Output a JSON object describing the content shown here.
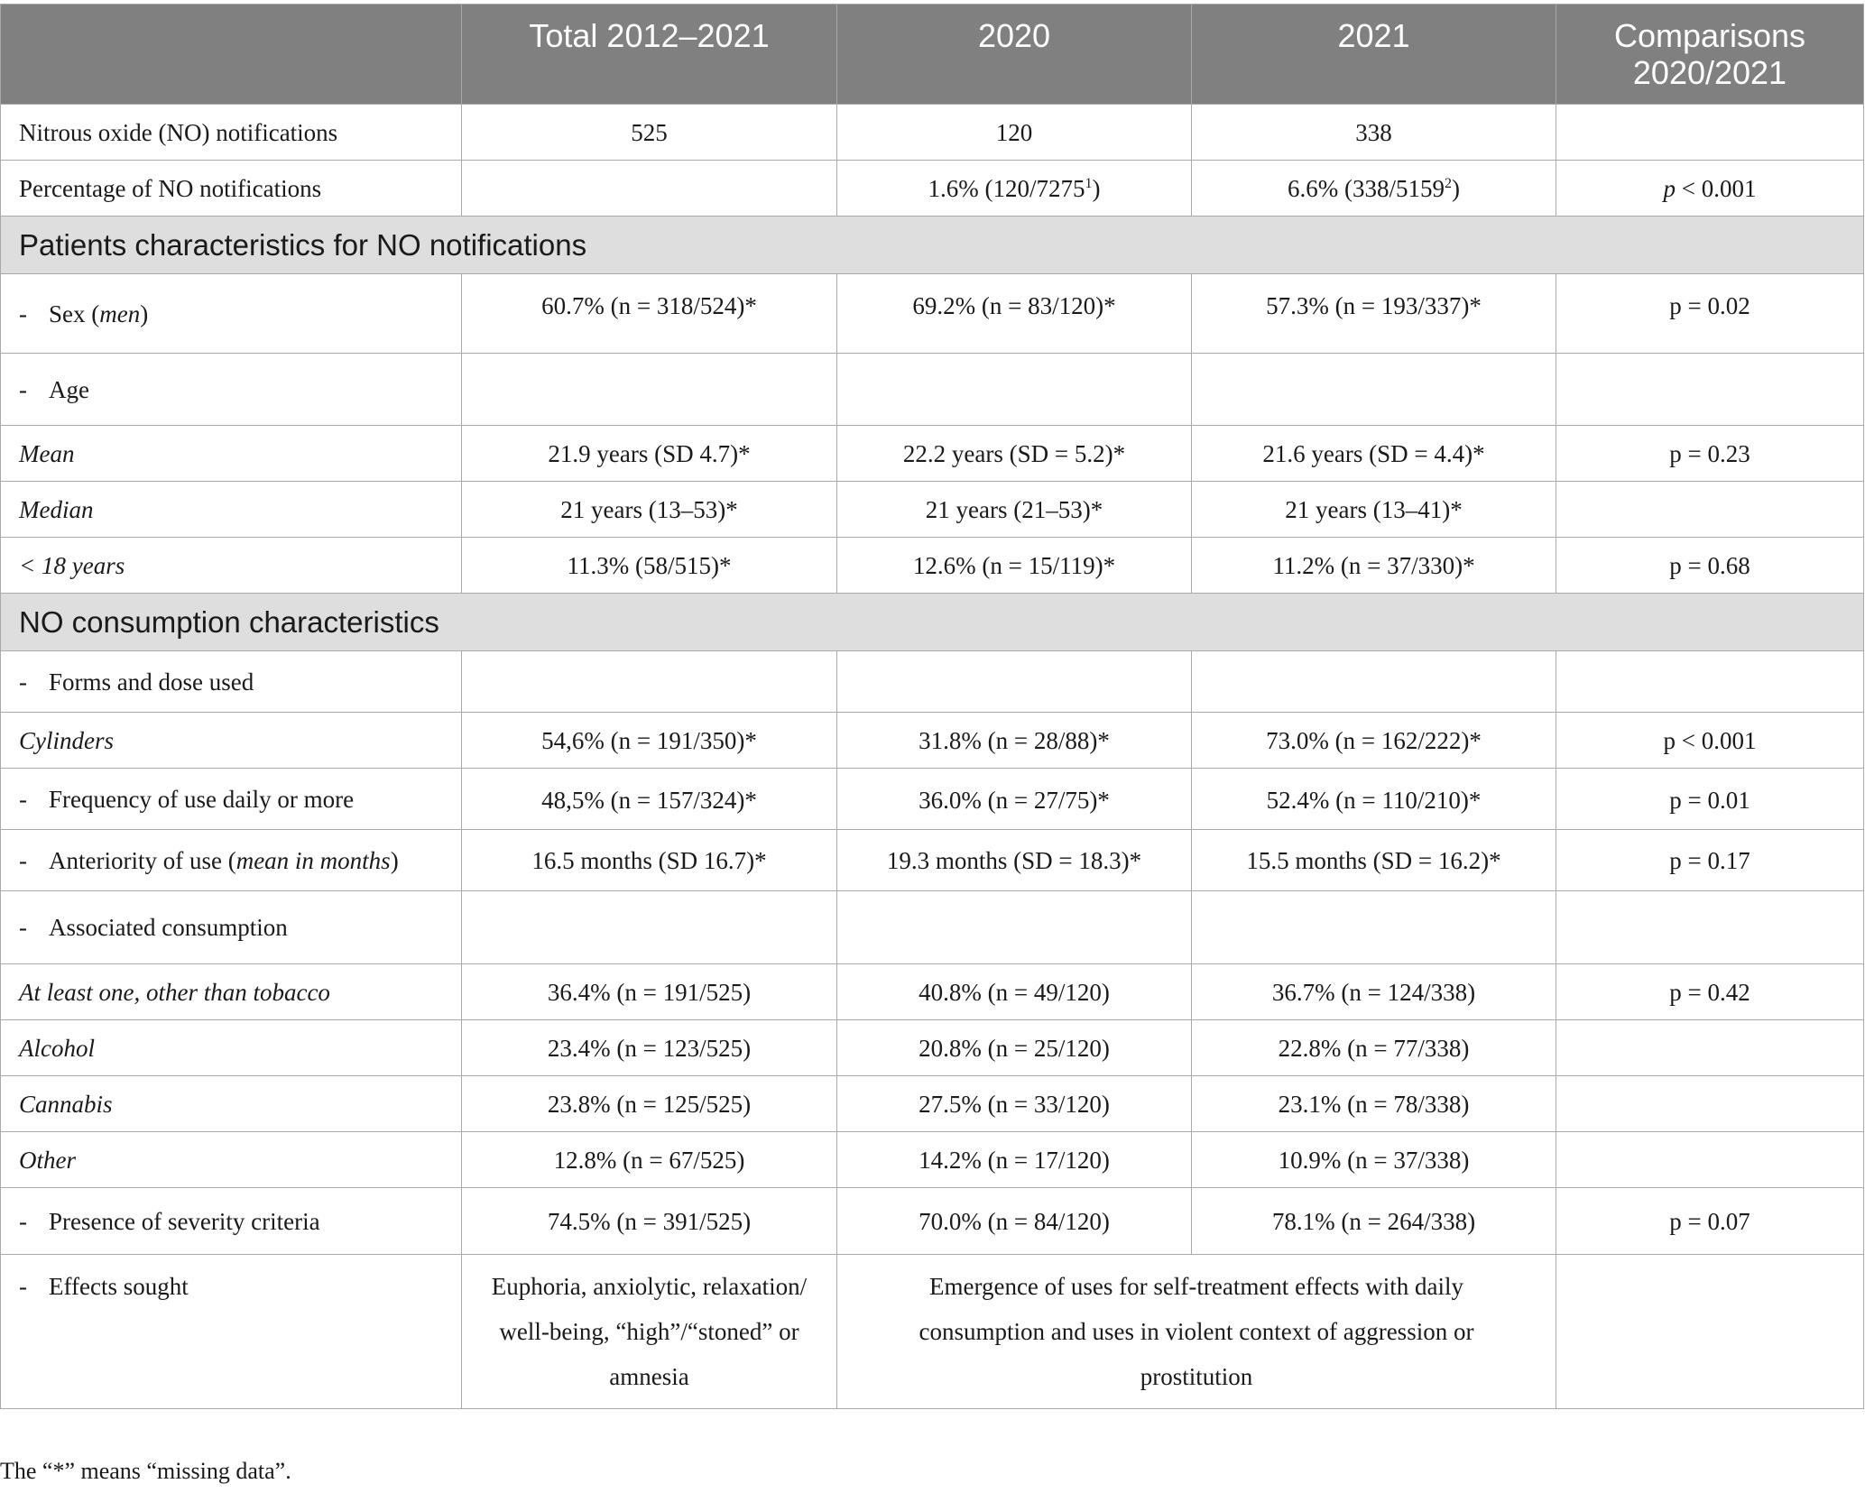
{
  "header": {
    "col0": "",
    "col1": "Total 2012–2021",
    "col2": "2020",
    "col3": "2021",
    "col4_line1": "Comparisons",
    "col4_line2": "2020/2021"
  },
  "rows": {
    "r1": {
      "label": "Nitrous oxide (NO) notifications",
      "c1": "525",
      "c2": "120",
      "c3": "338",
      "c4": ""
    },
    "r2": {
      "label": "Percentage of NO notifications",
      "c1": "",
      "c2_text": "1.6% (120/7275",
      "c2_sup": "1",
      "c2_end": ")",
      "c3_text": "6.6% (338/5159",
      "c3_sup": "2",
      "c3_end": ")",
      "c4_p": "p",
      "c4_rest": " < 0.001"
    },
    "section1": "Patients characteristics for NO notifications",
    "r3": {
      "dash": "-",
      "label_pre": "Sex (",
      "label_it": "men",
      "label_post": ")",
      "c1": "60.7% (n = 318/524)*",
      "c2": "69.2% (n = 83/120)*",
      "c3": "57.3% (n = 193/337)*",
      "c4": "p = 0.02"
    },
    "r4": {
      "dash": "-",
      "label": "Age"
    },
    "r5": {
      "label": "Mean",
      "c1": "21.9 years (SD 4.7)*",
      "c2": "22.2 years (SD = 5.2)*",
      "c3": "21.6 years (SD = 4.4)*",
      "c4": "p = 0.23"
    },
    "r6": {
      "label": "Median",
      "c1": "21 years (13–53)*",
      "c2": "21 years (21–53)*",
      "c3": "21 years (13–41)*",
      "c4": ""
    },
    "r7": {
      "label": "< 18 years",
      "c1": "11.3% (58/515)*",
      "c2": "12.6% (n = 15/119)*",
      "c3": "11.2% (n = 37/330)*",
      "c4": "p = 0.68"
    },
    "section2": "NO consumption characteristics",
    "r8": {
      "dash": "-",
      "label": "Forms and dose used"
    },
    "r9": {
      "label": "Cylinders",
      "c1": "54,6% (n = 191/350)*",
      "c2": "31.8% (n = 28/88)*",
      "c3": "73.0% (n = 162/222)*",
      "c4": "p < 0.001"
    },
    "r10": {
      "dash": "-",
      "label": "Frequency of use daily or more",
      "c1": "48,5% (n = 157/324)*",
      "c2": "36.0% (n = 27/75)*",
      "c3": "52.4% (n = 110/210)*",
      "c4": "p = 0.01"
    },
    "r11": {
      "dash": "-",
      "label_pre": "Anteriority of use (",
      "label_it": "mean in months",
      "label_post": ")",
      "c1": "16.5 months (SD 16.7)*",
      "c2": "19.3 months (SD = 18.3)*",
      "c3": "15.5 months (SD = 16.2)*",
      "c4": "p = 0.17"
    },
    "r12": {
      "dash": "-",
      "label": "Associated consumption"
    },
    "r13": {
      "label": "At least one, other than tobacco",
      "c1": "36.4% (n = 191/525)",
      "c2": "40.8% (n = 49/120)",
      "c3": "36.7% (n = 124/338)",
      "c4": "p = 0.42"
    },
    "r14": {
      "label": "Alcohol",
      "c1": "23.4% (n = 123/525)",
      "c2": "20.8% (n = 25/120)",
      "c3": "22.8% (n = 77/338)",
      "c4": ""
    },
    "r15": {
      "label": "Cannabis",
      "c1": "23.8% (n = 125/525)",
      "c2": "27.5% (n = 33/120)",
      "c3": "23.1% (n = 78/338)",
      "c4": ""
    },
    "r16": {
      "label": "Other",
      "c1": "12.8% (n = 67/525)",
      "c2": "14.2% (n = 17/120)",
      "c3": "10.9% (n = 37/338)",
      "c4": ""
    },
    "r17": {
      "dash": "-",
      "label": "Presence of severity criteria",
      "c1": "74.5% (n = 391/525)",
      "c2": "70.0% (n = 84/120)",
      "c3": "78.1% (n = 264/338)",
      "c4": "p = 0.07"
    },
    "r18": {
      "dash": "-",
      "label": "Effects sought",
      "c1": "Euphoria, anxiolytic, relaxation/ well-being, “high”/“stoned” or amnesia",
      "c23": "Emergence of uses for self-treatment effects with daily consumption and uses in violent context of aggression or prostitution",
      "c4": ""
    }
  },
  "footnote": "The “*” means “missing data”."
}
